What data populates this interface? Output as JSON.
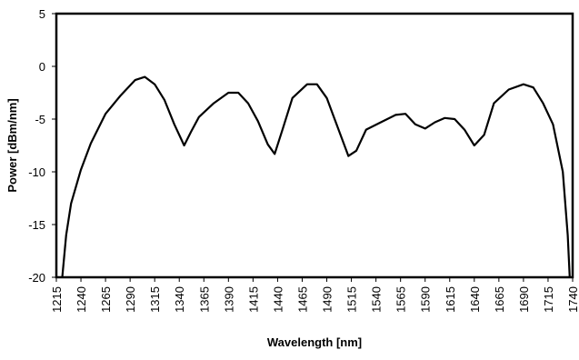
{
  "chart_data": {
    "type": "line",
    "x_label": "Wavelength [nm]",
    "y_label": "Power [dBm/nm]",
    "x": [
      1221,
      1225,
      1230,
      1240,
      1250,
      1265,
      1280,
      1295,
      1305,
      1315,
      1325,
      1335,
      1345,
      1352,
      1360,
      1375,
      1390,
      1400,
      1410,
      1420,
      1430,
      1437,
      1445,
      1455,
      1470,
      1480,
      1490,
      1500,
      1512,
      1520,
      1530,
      1545,
      1560,
      1570,
      1580,
      1590,
      1600,
      1610,
      1620,
      1630,
      1640,
      1650,
      1660,
      1675,
      1690,
      1700,
      1710,
      1720,
      1730,
      1735,
      1737
    ],
    "series": [
      {
        "name": "Power",
        "color": "#000000",
        "values": [
          -20,
          -16,
          -13,
          -9.8,
          -7.3,
          -4.5,
          -2.8,
          -1.3,
          -1.0,
          -1.7,
          -3.2,
          -5.5,
          -7.5,
          -6.2,
          -4.8,
          -3.5,
          -2.5,
          -2.5,
          -3.5,
          -5.2,
          -7.4,
          -8.3,
          -6.0,
          -3.0,
          -1.7,
          -1.7,
          -3.0,
          -5.5,
          -8.5,
          -8.0,
          -6.0,
          -5.3,
          -4.6,
          -4.5,
          -5.5,
          -5.9,
          -5.3,
          -4.9,
          -5.0,
          -6.0,
          -7.5,
          -6.5,
          -3.5,
          -2.2,
          -1.7,
          -2.0,
          -3.5,
          -5.5,
          -10,
          -16,
          -20
        ]
      }
    ],
    "xlim": [
      1215,
      1740
    ],
    "ylim": [
      -20,
      5
    ],
    "xticks": [
      1215,
      1240,
      1265,
      1290,
      1315,
      1340,
      1365,
      1390,
      1415,
      1440,
      1465,
      1490,
      1515,
      1540,
      1565,
      1590,
      1615,
      1640,
      1665,
      1690,
      1715,
      1740
    ],
    "yticks": [
      5,
      0,
      -5,
      -10,
      -15,
      -20
    ]
  }
}
